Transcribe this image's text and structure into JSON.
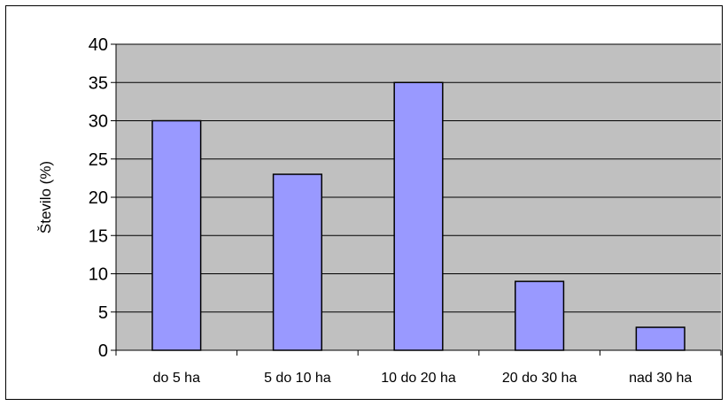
{
  "chart_data": {
    "type": "bar",
    "title": "",
    "xlabel": "",
    "ylabel": "Število (%)",
    "categories": [
      "do 5 ha",
      "5 do 10 ha",
      "10 do 20 ha",
      "20 do 30 ha",
      "nad 30 ha"
    ],
    "values": [
      30,
      23,
      35,
      9,
      3
    ],
    "ylim": [
      0,
      40
    ],
    "yticks": [
      "0",
      "5",
      "10",
      "15",
      "20",
      "25",
      "30",
      "35",
      "40"
    ],
    "grid": true,
    "legend": "none",
    "colors": {
      "plot_background": "#c0c0c0",
      "bar_fill": "#9999ff",
      "bar_stroke": "#000000",
      "gridline": "#000000"
    }
  }
}
